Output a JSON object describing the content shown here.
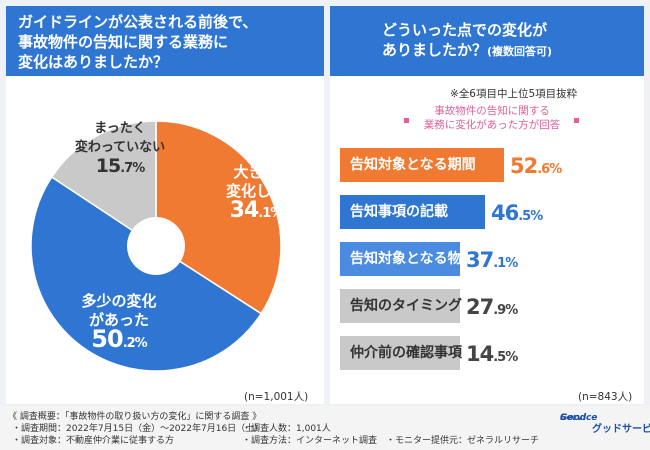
{
  "left": {
    "title_lines": [
      "ガイドラインが公表される前後で、",
      "事故物件の告知に関する業務に",
      "変化はありましたか？"
    ],
    "sample": "(n=1,001人)"
  },
  "right": {
    "title_line1": "どういった点での変化が",
    "title_line2": "ありましたか？",
    "title_suffix": "(複数回答可)",
    "note1": "※全6項目中上位5項目抜粋",
    "note2_line1": "事故物件の告知に関する",
    "note2_line2": "業務に変化があった方が回答",
    "sample": "(n=843人)"
  },
  "chart_data": [
    {
      "type": "pie",
      "title": "ガイドラインが公表される前後で、事故物件の告知に関する業務に変化はありましたか？",
      "slices": [
        {
          "label_lines": [
            "大きく",
            "変化した"
          ],
          "value": 34.1,
          "int": "34",
          "dec": ".1%",
          "color": "#f07a32"
        },
        {
          "label_lines": [
            "多少の変化",
            "があった"
          ],
          "value": 50.2,
          "int": "50",
          "dec": ".2%",
          "color": "#2f76d3"
        },
        {
          "label_lines": [
            "まったく",
            "変わっていない"
          ],
          "value": 15.7,
          "int": "15",
          "dec": ".7%",
          "color": "#c9c9c9"
        }
      ]
    },
    {
      "type": "bar",
      "title": "どういった点での変化がありましたか？",
      "orientation": "horizontal",
      "categories": [
        "告知対象となる期間",
        "告知事項の記載",
        "告知対象となる物件",
        "告知のタイミング",
        "仲介前の確認事項"
      ],
      "values": [
        52.6,
        46.5,
        37.1,
        27.9,
        14.5
      ],
      "value_int": [
        "52",
        "46",
        "37",
        "27",
        "14"
      ],
      "value_dec": [
        ".6%",
        ".5%",
        ".1%",
        ".9%",
        ".5%"
      ],
      "bar_colors": [
        "#f07a32",
        "#2f76d3",
        "#4b8be0",
        "#c9c9c9",
        "#c9c9c9"
      ],
      "value_colors": [
        "#f07a32",
        "#2f76d3",
        "#2f76d3",
        "#444444",
        "#444444"
      ]
    }
  ],
  "footer": {
    "line1": "《 調査概要：「事故物件の取り扱い方の変化」に関する調査 》",
    "period": "・調査期間：2022年7月15日（金）〜2022年7月16日（土）",
    "target": "・調査対象：不動産仲介業に従事する方",
    "count": "・調査人数：1,001人",
    "method": "・調査方法：インターネット調査",
    "monitor": "・モニター提供元：ゼネラルリサーチ",
    "logo_line1": "Good",
    "logo_line2": "Service",
    "logo_name": "グッドサービス"
  }
}
